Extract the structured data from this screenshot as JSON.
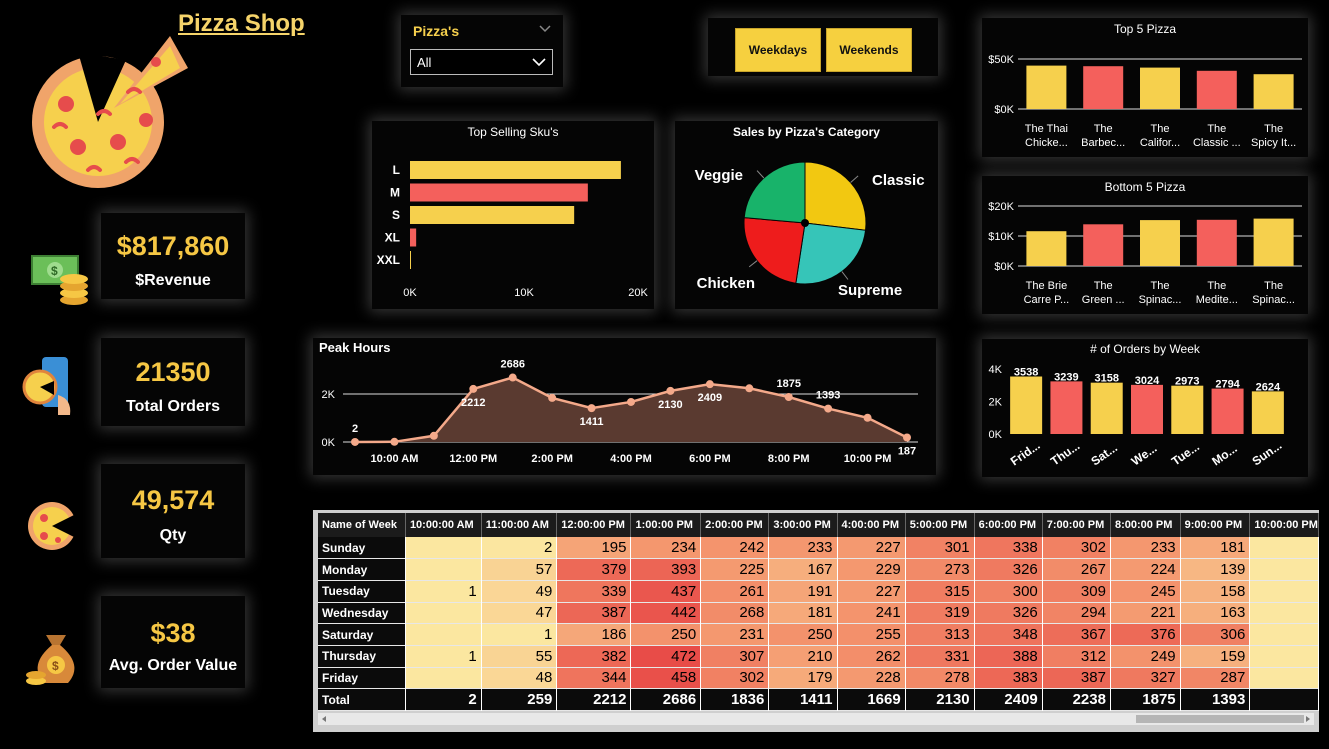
{
  "title": "Pizza Shop",
  "kpis": [
    {
      "value": "$817,860",
      "label": "$Revenue",
      "icon": "money-stack-icon"
    },
    {
      "value": "21350",
      "label": "Total Orders",
      "icon": "mobile-order-icon"
    },
    {
      "value": "49,574",
      "label": "Qty",
      "icon": "pizza-slice-icon"
    },
    {
      "value": "$38",
      "label": "Avg. Order Value",
      "icon": "money-bag-icon"
    }
  ],
  "filter": {
    "label": "Pizza's",
    "value": "All"
  },
  "buttons": {
    "weekdays": "Weekdays",
    "weekends": "Weekends"
  },
  "colors": {
    "yellow": "#F6D04D",
    "red": "#F4605C",
    "background": "#000000",
    "accent_text": "#F6C744"
  },
  "top_selling_sku": {
    "title": "Top Selling Sku's",
    "type": "bar",
    "categories": [
      "L",
      "M",
      "S",
      "XL",
      "XXL"
    ],
    "values": [
      18500,
      15600,
      14400,
      540,
      30
    ],
    "xticks": [
      "0K",
      "10K",
      "20K"
    ],
    "xlim": [
      0,
      20000
    ]
  },
  "category_pie": {
    "title": "Sales by Pizza's Category",
    "type": "pie",
    "slices": [
      {
        "label": "Classic",
        "value": 26.9,
        "color": "#F2C811"
      },
      {
        "label": "Supreme",
        "value": 25.5,
        "color": "#36C5B8"
      },
      {
        "label": "Chicken",
        "value": 24.0,
        "color": "#EE1C1C"
      },
      {
        "label": "Veggie",
        "value": 23.6,
        "color": "#18B36A"
      }
    ]
  },
  "top5": {
    "title": "Top 5 Pizza",
    "type": "bar",
    "labels": [
      [
        "The Thai",
        "Chicke..."
      ],
      [
        "The",
        "Barbec..."
      ],
      [
        "The",
        "Califor..."
      ],
      [
        "The",
        "Classic ..."
      ],
      [
        "The",
        "Spicy It..."
      ]
    ],
    "values": [
      43400,
      42800,
      41400,
      38200,
      34800
    ],
    "yticks": [
      "$0K",
      "$50K"
    ],
    "ylim": [
      0,
      50000
    ]
  },
  "bottom5": {
    "title": "Bottom 5 Pizza",
    "type": "bar",
    "labels": [
      [
        "The Brie",
        "Carre P..."
      ],
      [
        "The",
        "Green ..."
      ],
      [
        "The",
        "Spinac..."
      ],
      [
        "The",
        "Medite..."
      ],
      [
        "The",
        "Spinac..."
      ]
    ],
    "values": [
      11600,
      13900,
      15300,
      15400,
      15800
    ],
    "yticks": [
      "$0K",
      "$10K",
      "$20K"
    ],
    "ylim": [
      0,
      20000
    ]
  },
  "orders_by_week": {
    "title": "# of Orders  by Week",
    "type": "bar",
    "labels": [
      "Frid...",
      "Thu...",
      "Sat...",
      "We...",
      "Tue...",
      "Mo...",
      "Sun..."
    ],
    "values": [
      3538,
      3239,
      3158,
      3024,
      2973,
      2794,
      2624
    ],
    "yticks": [
      "0K",
      "2K",
      "4K"
    ],
    "ylim": [
      0,
      4000
    ]
  },
  "peak_hours": {
    "title": "Peak Hours",
    "type": "area",
    "x": [
      "9:00 AM",
      "10:00 AM",
      "11:00 AM",
      "12:00 PM",
      "1:00 PM",
      "2:00 PM",
      "3:00 PM",
      "4:00 PM",
      "5:00 PM",
      "6:00 PM",
      "7:00 PM",
      "8:00 PM",
      "9:00 PM",
      "10:00 PM",
      "11:00 PM"
    ],
    "values": [
      2,
      8,
      259,
      2212,
      2686,
      1836,
      1411,
      1669,
      2130,
      2409,
      2238,
      1875,
      1393,
      1010,
      187
    ],
    "data_labels": [
      "2",
      "",
      "",
      "2212",
      "2686",
      "",
      "1411",
      "",
      "2130",
      "2409",
      "",
      "1875",
      "1393",
      "",
      "187"
    ],
    "xticks": [
      "10:00 AM",
      "12:00 PM",
      "2:00 PM",
      "4:00 PM",
      "6:00 PM",
      "8:00 PM",
      "10:00 PM"
    ],
    "yticks": [
      "0K",
      "2K"
    ],
    "ylim": [
      0,
      2800
    ]
  },
  "matrix": {
    "corner": "Name of Week",
    "columns": [
      "10:00:00 AM",
      "11:00:00 AM",
      "12:00:00 PM",
      "1:00:00 PM",
      "2:00:00 PM",
      "3:00:00 PM",
      "4:00:00 PM",
      "5:00:00 PM",
      "6:00:00 PM",
      "7:00:00 PM",
      "8:00:00 PM",
      "9:00:00 PM",
      "10:00:00 PM"
    ],
    "rows": [
      {
        "name": "Sunday",
        "values": [
          "",
          "2",
          "195",
          "234",
          "242",
          "233",
          "227",
          "301",
          "338",
          "302",
          "233",
          "181",
          ""
        ]
      },
      {
        "name": "Monday",
        "values": [
          "",
          "57",
          "379",
          "393",
          "225",
          "167",
          "229",
          "273",
          "326",
          "267",
          "224",
          "139",
          ""
        ]
      },
      {
        "name": "Tuesday",
        "values": [
          "1",
          "49",
          "339",
          "437",
          "261",
          "191",
          "227",
          "315",
          "300",
          "309",
          "245",
          "158",
          ""
        ]
      },
      {
        "name": "Wednesday",
        "values": [
          "",
          "47",
          "387",
          "442",
          "268",
          "181",
          "241",
          "319",
          "326",
          "294",
          "221",
          "163",
          ""
        ]
      },
      {
        "name": "Saturday",
        "values": [
          "",
          "1",
          "186",
          "250",
          "231",
          "250",
          "255",
          "313",
          "348",
          "367",
          "376",
          "306",
          ""
        ]
      },
      {
        "name": "Thursday",
        "values": [
          "1",
          "55",
          "382",
          "472",
          "307",
          "210",
          "262",
          "331",
          "388",
          "312",
          "249",
          "159",
          ""
        ]
      },
      {
        "name": "Friday",
        "values": [
          "",
          "48",
          "344",
          "458",
          "302",
          "179",
          "228",
          "278",
          "383",
          "387",
          "327",
          "287",
          ""
        ]
      }
    ],
    "total": {
      "name": "Total",
      "values": [
        "2",
        "259",
        "2212",
        "2686",
        "1836",
        "1411",
        "1669",
        "2130",
        "2409",
        "2238",
        "1875",
        "1393",
        ""
      ]
    }
  }
}
